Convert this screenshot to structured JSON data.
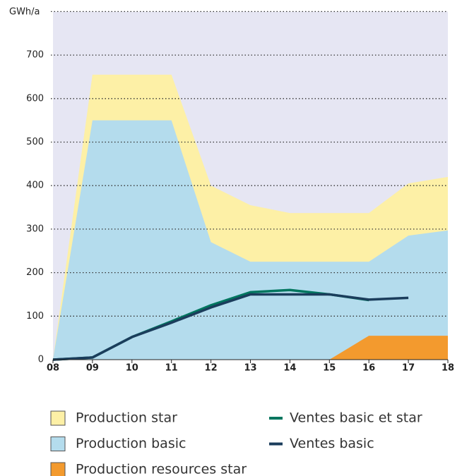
{
  "chart_data": {
    "type": "area",
    "y_label": "GWh/a",
    "categories": [
      "08",
      "09",
      "10",
      "11",
      "12",
      "13",
      "14",
      "15",
      "16",
      "17",
      "18"
    ],
    "series": [
      {
        "name": "Production star",
        "kind": "area",
        "color": "#fdf0a6",
        "values": [
          0,
          655,
          655,
          655,
          400,
          355,
          337,
          337,
          337,
          405,
          420
        ]
      },
      {
        "name": "Production basic",
        "kind": "area",
        "color": "#b4dced",
        "values": [
          0,
          550,
          550,
          550,
          270,
          225,
          225,
          225,
          225,
          285,
          297
        ]
      },
      {
        "name": "Production resources star",
        "kind": "area",
        "color": "#f39a2e",
        "values": [
          null,
          null,
          null,
          null,
          null,
          null,
          null,
          0,
          55,
          55,
          55
        ]
      },
      {
        "name": "Ventes basic et star",
        "kind": "line",
        "color": "#00765f",
        "values": [
          0,
          5,
          52,
          88,
          125,
          155,
          160,
          150,
          137,
          null,
          null
        ]
      },
      {
        "name": "Ventes basic",
        "kind": "line",
        "color": "#1b3d5c",
        "values": [
          0,
          5,
          52,
          85,
          120,
          150,
          150,
          150,
          138,
          142,
          null
        ]
      }
    ],
    "ylim": [
      0,
      800
    ],
    "yticks": [
      0,
      100,
      200,
      300,
      400,
      500,
      600,
      700
    ],
    "grid": true,
    "plot_background": "#e6e6f3"
  }
}
